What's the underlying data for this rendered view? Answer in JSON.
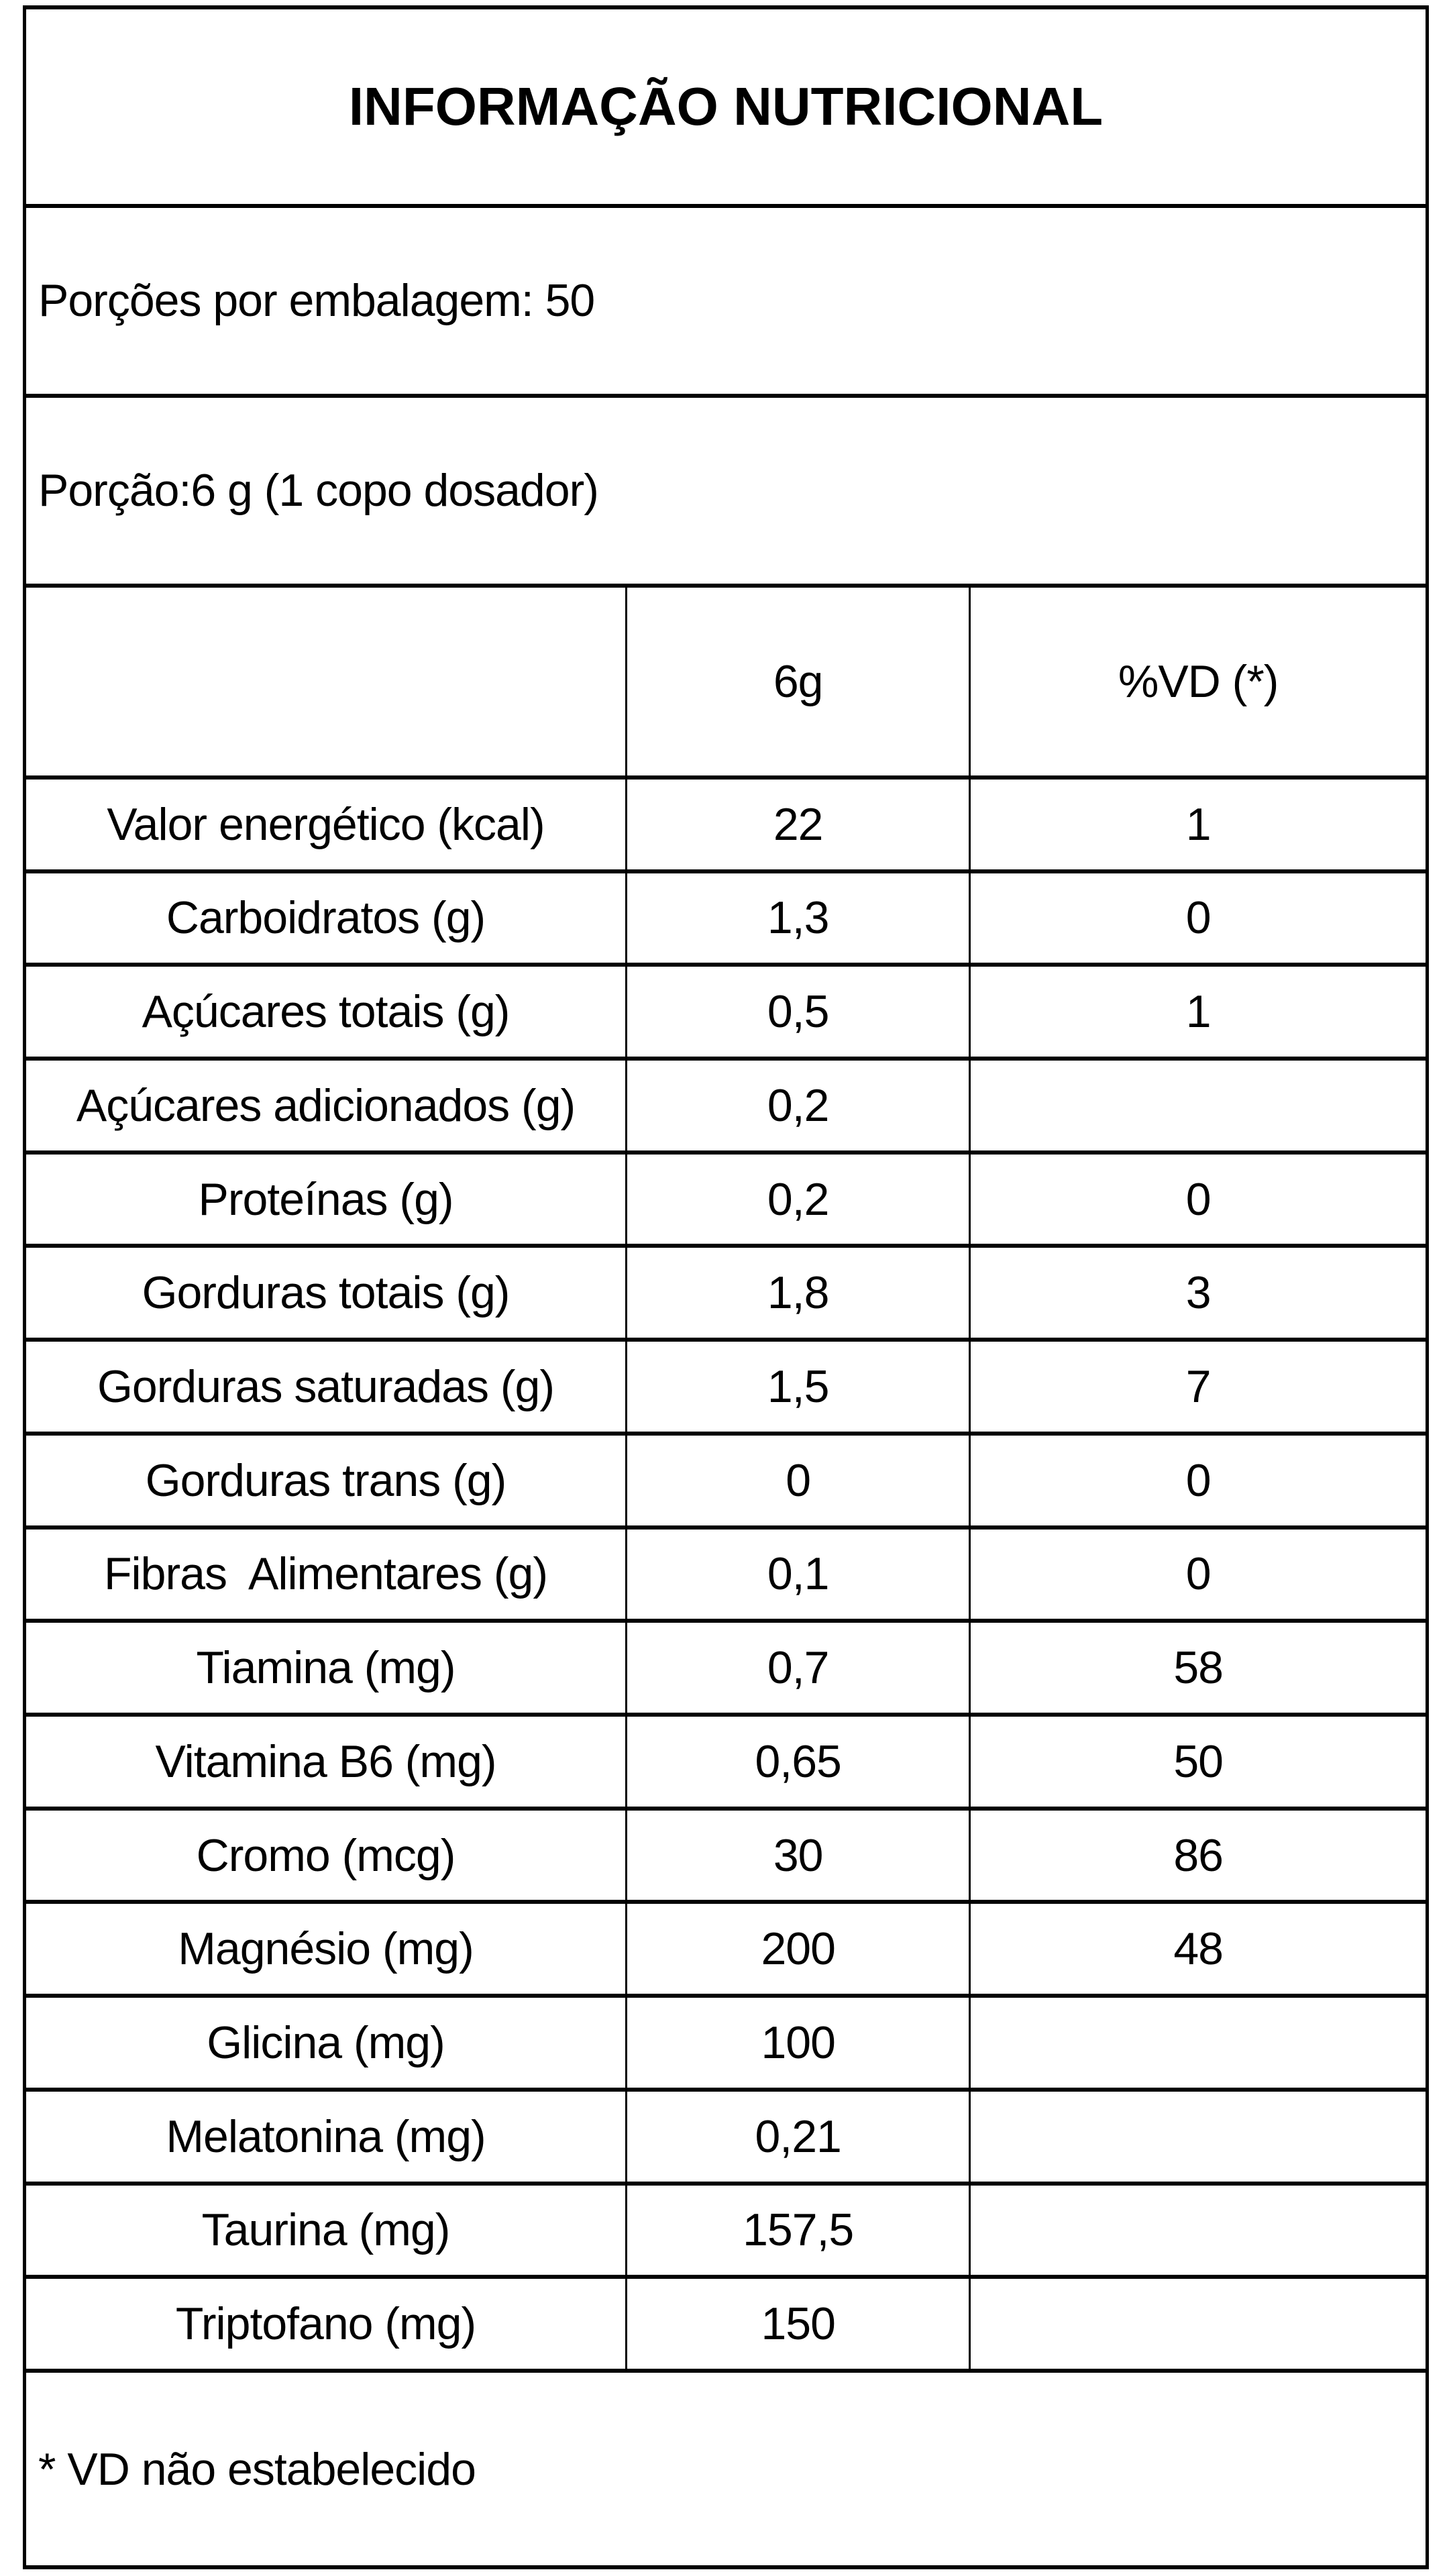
{
  "table": {
    "title": "INFORMAÇÃO NUTRICIONAL",
    "servings_line": "Porções por embalagem: 50",
    "serving_size_line": "Porção:6 g (1 copo dosador)",
    "columns": {
      "nutrient_header": "",
      "amount_header": "6g",
      "vd_header": "%VD (*)"
    },
    "rows": [
      {
        "label": "Valor energético (kcal)",
        "amount": "22",
        "vd": "1"
      },
      {
        "label": "Carboidratos (g)",
        "amount": "1,3",
        "vd": "0"
      },
      {
        "label": "Açúcares totais (g)",
        "amount": "0,5",
        "vd": "1"
      },
      {
        "label": "Açúcares adicionados (g)",
        "amount": "0,2",
        "vd": ""
      },
      {
        "label": "Proteínas (g)",
        "amount": "0,2",
        "vd": "0"
      },
      {
        "label": "Gorduras totais (g)",
        "amount": "1,8",
        "vd": "3"
      },
      {
        "label": "Gorduras saturadas (g)",
        "amount": "1,5",
        "vd": "7"
      },
      {
        "label": "Gorduras trans (g)",
        "amount": "0",
        "vd": "0"
      },
      {
        "label": "Fibras  Alimentares (g)",
        "amount": "0,1",
        "vd": "0"
      },
      {
        "label": "Tiamina (mg)",
        "amount": "0,7",
        "vd": "58"
      },
      {
        "label": "Vitamina B6 (mg)",
        "amount": "0,65",
        "vd": "50"
      },
      {
        "label": "Cromo (mcg)",
        "amount": "30",
        "vd": "86"
      },
      {
        "label": "Magnésio (mg)",
        "amount": "200",
        "vd": "48"
      },
      {
        "label": "Glicina (mg)",
        "amount": "100",
        "vd": ""
      },
      {
        "label": "Melatonina (mg)",
        "amount": "0,21",
        "vd": ""
      },
      {
        "label": "Taurina (mg)",
        "amount": "157,5",
        "vd": ""
      },
      {
        "label": "Triptofano (mg)",
        "amount": "150",
        "vd": ""
      }
    ],
    "footnote": "* VD não estabelecido"
  },
  "colors": {
    "border": "#000000",
    "background": "#ffffff",
    "text": "#000000"
  }
}
